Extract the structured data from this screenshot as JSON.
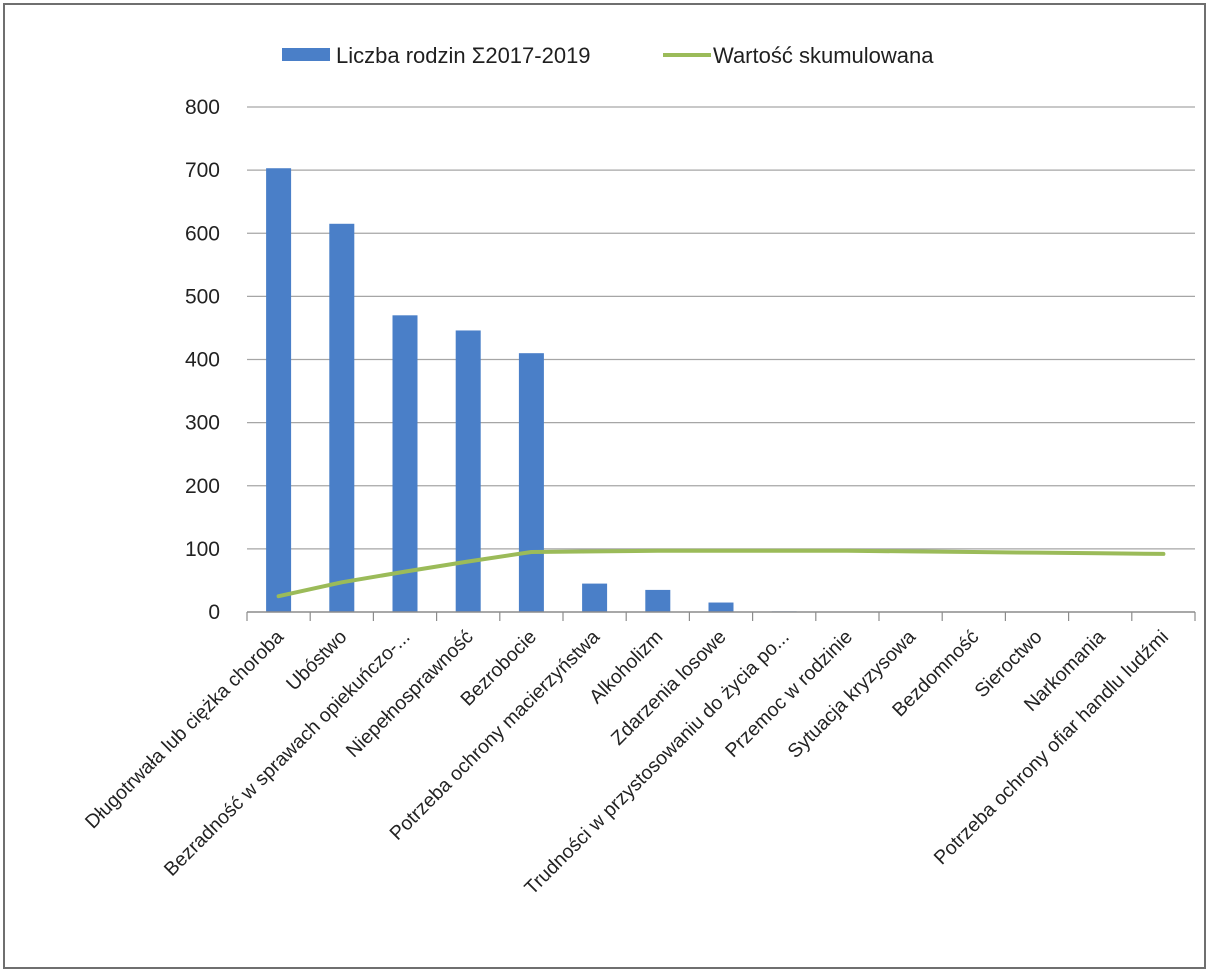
{
  "chart_data": {
    "type": "bar",
    "title": "",
    "xlabel": "",
    "ylabel": "",
    "ylim": [
      0,
      800
    ],
    "yticks": [
      0,
      100,
      200,
      300,
      400,
      500,
      600,
      700,
      800
    ],
    "grid": true,
    "legend_position": "top",
    "categories": [
      "Długotrwała lub ciężka choroba",
      "Ubóstwo",
      "Bezradność w sprawach opiekuńczo-...",
      "Niepełnosprawność",
      "Bezrobocie",
      "Potrzeba ochrony macierzyństwa",
      "Alkoholizm",
      "Zdarzenia losowe",
      "Trudności w przystosowaniu do życia po...",
      "Przemoc w rodzinie",
      "Sytuacja kryzysowa",
      "Bezdomność",
      "Sieroctwo",
      "Narkomania",
      "Potrzeba ochrony ofiar handlu ludźmi"
    ],
    "series": [
      {
        "name": "Liczba rodzin Σ2017-2019",
        "type": "bar",
        "color": "#4a7fc8",
        "values": [
          703,
          615,
          470,
          446,
          410,
          45,
          35,
          15,
          1,
          0,
          0,
          0,
          0,
          0,
          0
        ]
      },
      {
        "name": "Wartość skumulowana",
        "type": "line",
        "color": "#9bbb59",
        "values": [
          25,
          47,
          64,
          80,
          95,
          96,
          97,
          97,
          97,
          97,
          96,
          95,
          94,
          93,
          92
        ]
      }
    ]
  }
}
